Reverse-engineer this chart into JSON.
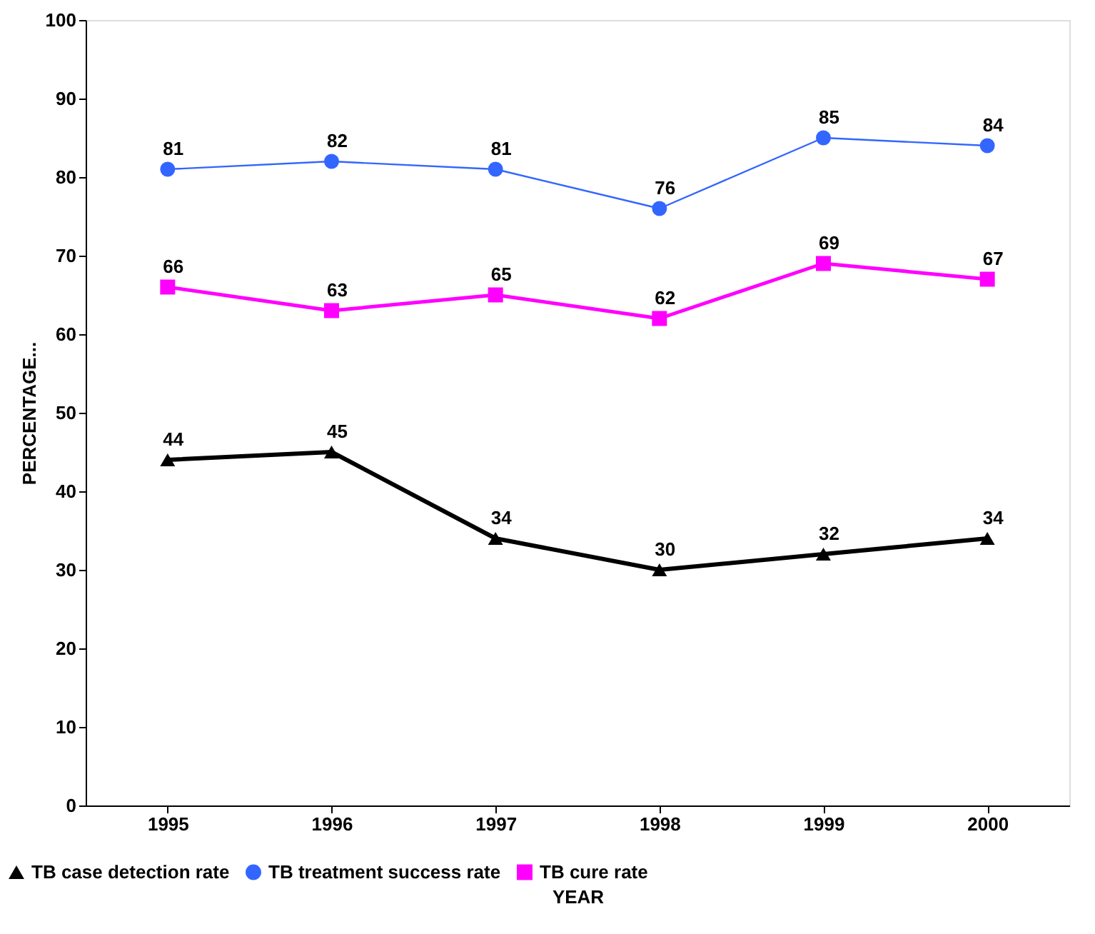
{
  "chart_data": {
    "type": "line",
    "xlabel": "YEAR",
    "ylabel": "PERCENTAGE...",
    "categories": [
      "1995",
      "1996",
      "1997",
      "1998",
      "1999",
      "2000"
    ],
    "series": [
      {
        "name": "TB case detection rate",
        "color": "#000000",
        "marker": "triangle",
        "line_style": "solid",
        "values": [
          44,
          45,
          34,
          30,
          32,
          34
        ]
      },
      {
        "name": "TB treatment success rate",
        "color": "#3366ff",
        "marker": "circle",
        "line_style": "solid",
        "values": [
          81,
          82,
          81,
          76,
          85,
          84
        ]
      },
      {
        "name": "TB cure rate",
        "color": "#ff00ff",
        "marker": "square",
        "line_style": "solid",
        "values": [
          66,
          63,
          65,
          62,
          69,
          67
        ]
      }
    ],
    "ylim": [
      0,
      100
    ],
    "yticks": [
      0,
      10,
      20,
      30,
      40,
      50,
      60,
      70,
      80,
      90,
      100
    ],
    "grid": false,
    "legend": "bottom",
    "data_labels": true
  }
}
